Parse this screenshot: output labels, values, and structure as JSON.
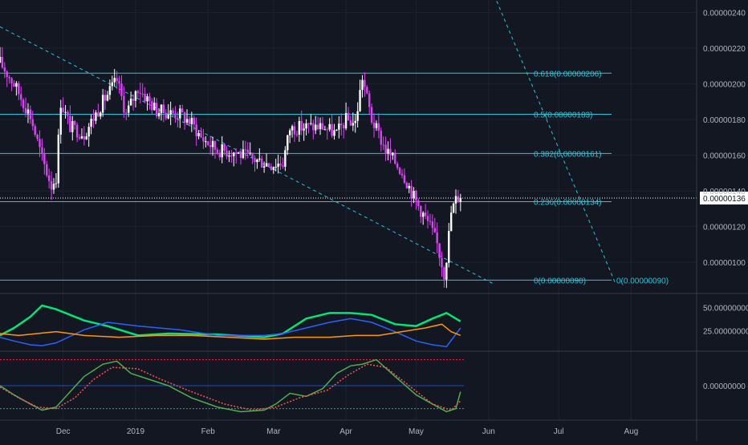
{
  "colors": {
    "background": "#131722",
    "grid": "#1e2230",
    "axis_text": "#b2b5be",
    "candle_up": "#ffffff",
    "candle_down": "#e040fb",
    "fib": "#26c6da",
    "trend": "#26c6da",
    "price_line": "#ffffff",
    "price_label_bg": "#ffffff",
    "price_label_text": "#131722",
    "dmi_plus": "#00e676",
    "dmi_minus": "#2962ff",
    "adx": "#ff9800",
    "osc_main": "#4caf50",
    "osc_signal": "#ff5252",
    "osc_hist": "#2962ff",
    "osc_upper": "#ff1744",
    "osc_lower": "#00c853"
  },
  "chart_data": {
    "type": "candlestick",
    "title": "",
    "x_axis": {
      "labels": [
        "Dec",
        "2019",
        "Feb",
        "Mar",
        "Apr",
        "May",
        "Jun",
        "Jul",
        "Aug"
      ],
      "dates": [
        "2018-12-01",
        "2019-01-01",
        "2019-02-01",
        "2019-03-01",
        "2019-04-01",
        "2019-05-01",
        "2019-06-01",
        "2019-07-01",
        "2019-08-01"
      ],
      "range": [
        "2018-11-04",
        "2019-08-29"
      ]
    },
    "price_axis": {
      "ticks": [
        "0.00000240",
        "0.00000220",
        "0.00000200",
        "0.00000180",
        "0.00000160",
        "0.00000140",
        "0.00000120",
        "0.00000100"
      ],
      "tick_values": [
        240,
        220,
        200,
        180,
        160,
        140,
        120,
        100
      ],
      "range": [
        83,
        247
      ],
      "unit_scale": 1e-08
    },
    "last_price": {
      "label": "0.00000136",
      "value": 136
    },
    "fib_levels": [
      {
        "label": "0.618(0.00000206)",
        "value": 206
      },
      {
        "label": "0.5(0.00000183)",
        "value": 183
      },
      {
        "label": "0.382(0.00000161)",
        "value": 161
      },
      {
        "label": "0.236(0.00000134)",
        "value": 134
      },
      {
        "label": "0(0.00000090)",
        "value": 90
      }
    ],
    "fib_label_zero_right": "0(0.00000090)",
    "close_series": {
      "dates": [
        "2018-11-04",
        "2018-11-10",
        "2018-11-17",
        "2018-11-22",
        "2018-11-26",
        "2018-11-28",
        "2018-11-30",
        "2018-12-04",
        "2018-12-10",
        "2018-12-18",
        "2018-12-24",
        "2018-12-28",
        "2019-01-02",
        "2019-01-10",
        "2019-01-20",
        "2019-01-25",
        "2019-01-29",
        "2019-02-05",
        "2019-02-12",
        "2019-02-20",
        "2019-02-28",
        "2019-03-05",
        "2019-03-08",
        "2019-03-15",
        "2019-03-22",
        "2019-03-28",
        "2019-04-01",
        "2019-04-05",
        "2019-04-08",
        "2019-04-12",
        "2019-04-18",
        "2019-04-25",
        "2019-05-01",
        "2019-05-07",
        "2019-05-10",
        "2019-05-13",
        "2019-05-14",
        "2019-05-16",
        "2019-05-18",
        "2019-05-20"
      ],
      "values": [
        212,
        200,
        182,
        158,
        143,
        148,
        190,
        176,
        172,
        190,
        202,
        183,
        198,
        185,
        183,
        178,
        170,
        163,
        162,
        158,
        155,
        156,
        175,
        176,
        176,
        172,
        180,
        178,
        204,
        180,
        163,
        151,
        134,
        120,
        110,
        94,
        103,
        128,
        135,
        138
      ]
    },
    "trend_lines": [
      {
        "from": [
          "2018-11-04",
          232
        ],
        "to": [
          "2019-06-03",
          88
        ]
      },
      {
        "from": [
          "2019-07-25",
          89
        ],
        "to": [
          "2019-06-03",
          251
        ]
      }
    ],
    "dmi_panel": {
      "axis_ticks": [
        "50.00000000",
        "25.00000000"
      ],
      "tick_values": [
        50,
        25
      ],
      "range": [
        4,
        64
      ],
      "series": [
        {
          "key": "plus",
          "dates": [
            "2018-11-04",
            "2018-11-10",
            "2018-11-17",
            "2018-11-22",
            "2018-11-28",
            "2018-12-10",
            "2018-12-20",
            "2019-01-02",
            "2019-01-15",
            "2019-02-05",
            "2019-02-25",
            "2019-03-05",
            "2019-03-15",
            "2019-03-25",
            "2019-04-03",
            "2019-04-12",
            "2019-04-22",
            "2019-05-01",
            "2019-05-08",
            "2019-05-14",
            "2019-05-20"
          ],
          "values": [
            20,
            28,
            40,
            52,
            48,
            36,
            30,
            20,
            22,
            21,
            18,
            22,
            38,
            44,
            44,
            42,
            32,
            30,
            38,
            44,
            35
          ]
        },
        {
          "key": "minus",
          "dates": [
            "2018-11-04",
            "2018-11-10",
            "2018-11-17",
            "2018-11-22",
            "2018-11-28",
            "2018-12-10",
            "2018-12-20",
            "2019-01-02",
            "2019-01-20",
            "2019-02-05",
            "2019-02-25",
            "2019-03-05",
            "2019-03-15",
            "2019-03-25",
            "2019-04-03",
            "2019-04-12",
            "2019-04-22",
            "2019-05-01",
            "2019-05-08",
            "2019-05-14",
            "2019-05-20"
          ],
          "values": [
            18,
            14,
            10,
            9,
            12,
            26,
            34,
            30,
            26,
            20,
            20,
            22,
            28,
            34,
            38,
            34,
            24,
            14,
            10,
            8,
            28
          ]
        },
        {
          "key": "adx",
          "dates": [
            "2018-11-04",
            "2018-11-12",
            "2018-11-20",
            "2018-11-28",
            "2018-12-10",
            "2018-12-25",
            "2019-01-10",
            "2019-01-25",
            "2019-02-10",
            "2019-02-25",
            "2019-03-10",
            "2019-03-25",
            "2019-04-05",
            "2019-04-15",
            "2019-04-25",
            "2019-05-05",
            "2019-05-12",
            "2019-05-16",
            "2019-05-20"
          ],
          "values": [
            22,
            20,
            22,
            24,
            20,
            18,
            20,
            20,
            18,
            16,
            18,
            18,
            20,
            20,
            24,
            28,
            32,
            24,
            20
          ]
        }
      ]
    },
    "osc_panel": {
      "axis_ticks": [
        "0.00000000"
      ],
      "tick_values": [
        0
      ],
      "range": [
        -110,
        110
      ],
      "upper_band": 85,
      "lower_band": -75,
      "series": [
        {
          "key": "main",
          "dates": [
            "2018-11-04",
            "2018-11-10",
            "2018-11-17",
            "2018-11-22",
            "2018-11-28",
            "2018-12-04",
            "2018-12-10",
            "2018-12-18",
            "2018-12-24",
            "2018-12-30",
            "2019-01-07",
            "2019-01-15",
            "2019-01-25",
            "2019-02-05",
            "2019-02-15",
            "2019-02-25",
            "2019-03-02",
            "2019-03-08",
            "2019-03-15",
            "2019-03-22",
            "2019-03-28",
            "2019-04-03",
            "2019-04-08",
            "2019-04-14",
            "2019-04-22",
            "2019-05-01",
            "2019-05-08",
            "2019-05-14",
            "2019-05-18",
            "2019-05-20"
          ],
          "values": [
            0,
            -30,
            -60,
            -80,
            -70,
            -20,
            30,
            70,
            80,
            40,
            20,
            0,
            -40,
            -70,
            -85,
            -80,
            -60,
            -25,
            -35,
            -10,
            40,
            65,
            70,
            85,
            30,
            -30,
            -60,
            -85,
            -75,
            -20
          ]
        },
        {
          "key": "signal",
          "dates": [
            "2018-11-04",
            "2018-11-12",
            "2018-11-20",
            "2018-11-28",
            "2018-12-06",
            "2018-12-14",
            "2018-12-22",
            "2019-01-02",
            "2019-01-12",
            "2019-01-25",
            "2019-02-08",
            "2019-02-20",
            "2019-03-02",
            "2019-03-12",
            "2019-03-24",
            "2019-04-02",
            "2019-04-10",
            "2019-04-18",
            "2019-04-28",
            "2019-05-08",
            "2019-05-16",
            "2019-05-20"
          ],
          "values": [
            -5,
            -40,
            -70,
            -75,
            -40,
            20,
            60,
            55,
            20,
            -20,
            -60,
            -80,
            -70,
            -40,
            -15,
            35,
            70,
            60,
            0,
            -60,
            -80,
            -50
          ]
        }
      ]
    }
  }
}
